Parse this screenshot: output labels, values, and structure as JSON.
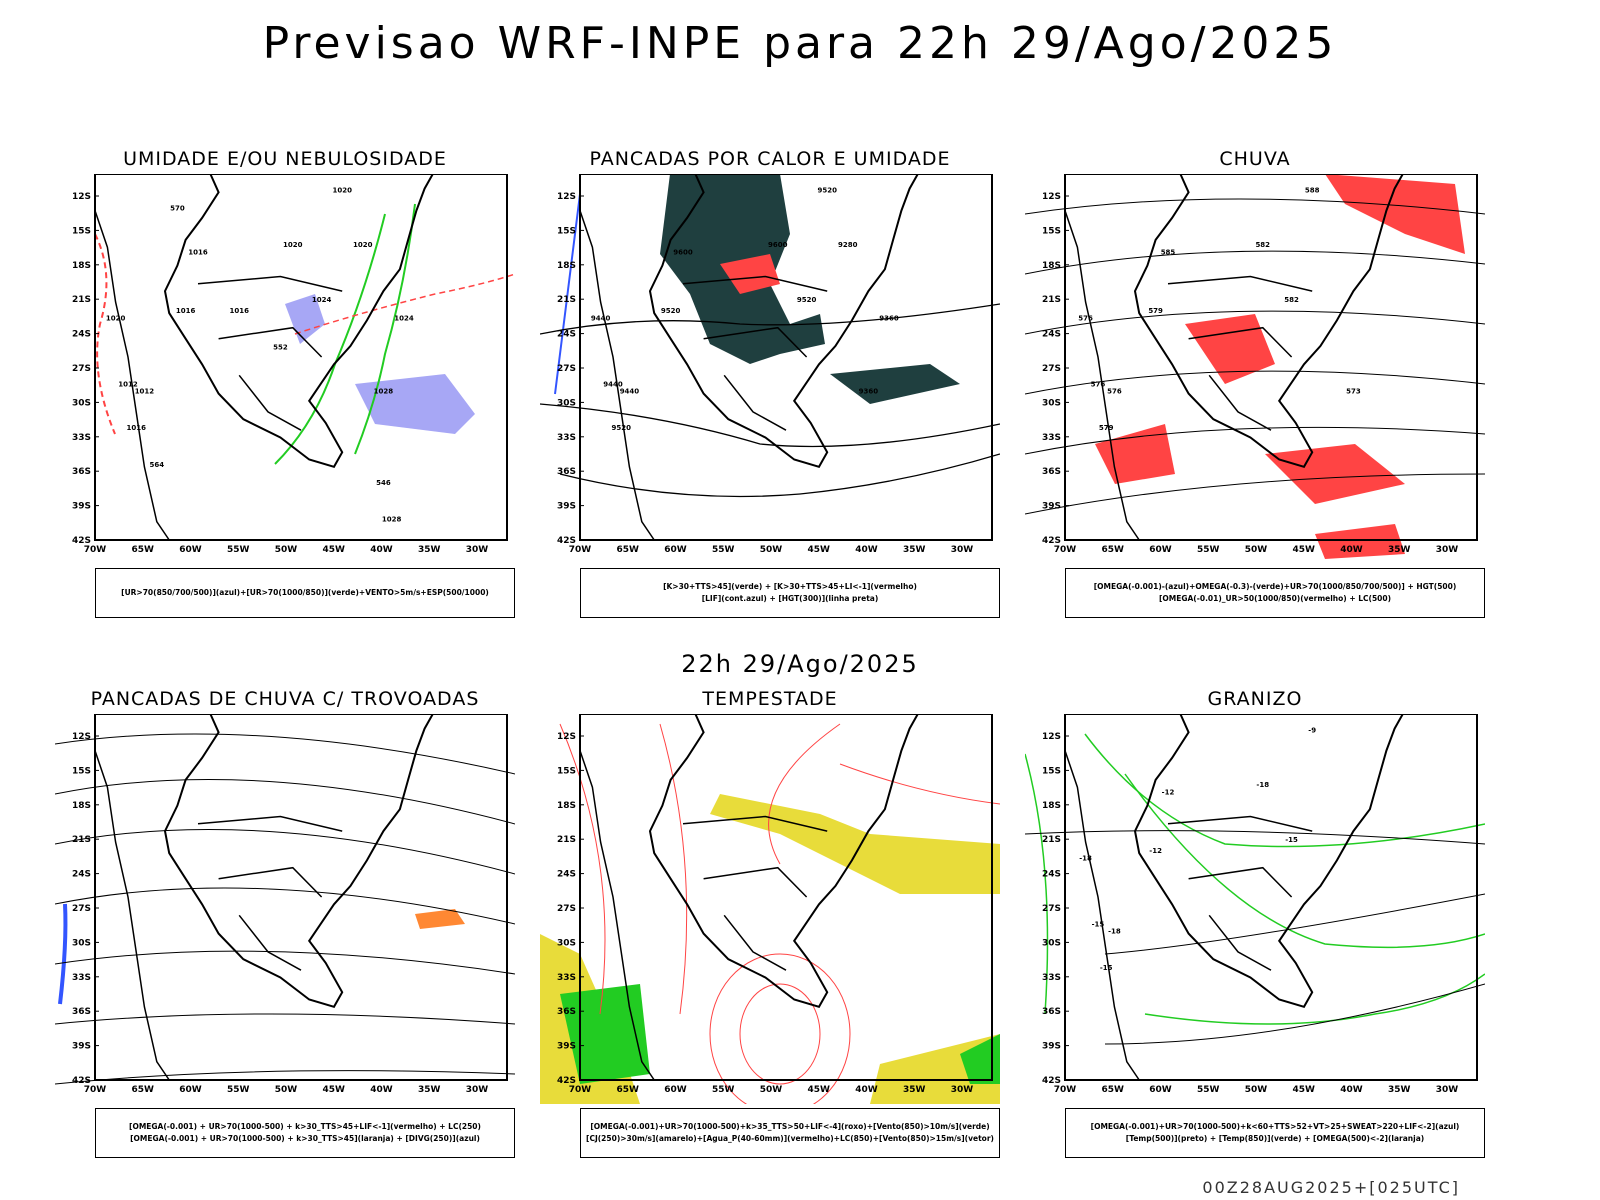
{
  "title": "Previsao WRF-INPE  para 22h 29/Ago/2025",
  "mid_title": "22h 29/Ago/2025",
  "footer": "00Z28AUG2025+[025UTC]",
  "axes": {
    "lat_labels": [
      "12S",
      "15S",
      "18S",
      "21S",
      "24S",
      "27S",
      "30S",
      "33S",
      "36S",
      "39S",
      "42S"
    ],
    "lon_labels": [
      "70W",
      "65W",
      "60W",
      "55W",
      "50W",
      "45W",
      "40W",
      "35W",
      "30W"
    ]
  },
  "colors": {
    "humid_blue": "#a7a7f5",
    "green": "#22cc22",
    "red": "#ff4444",
    "dark_teal": "#1f3f3f",
    "yellow": "#e8dc3a",
    "orange": "#ff8833",
    "blue": "#3355ff"
  },
  "panels": [
    {
      "title": "UMIDADE E/OU NEBULOSIDADE",
      "legend": [
        "[UR>70(850/700/500)](azul)+[UR>70(1000/850)](verde)+VENTO>5m/s+ESP(500/1000)"
      ],
      "contour_labels": [
        "1020",
        "1016",
        "1024",
        "1020",
        "1016",
        "1012",
        "1020",
        "1016",
        "1012",
        "1028",
        "1024",
        "1020",
        "1016",
        "1028",
        "570",
        "564",
        "552",
        "546"
      ]
    },
    {
      "title": "PANCADAS POR CALOR E UMIDADE",
      "legend": [
        "[K>30+TTS>45](verde) + [K>30+TTS>45+LI<-1](vermelho)",
        "[LIF](cont.azul) + [HGT(300)](linha preta)"
      ],
      "contour_labels": [
        "9520",
        "9600",
        "9520",
        "9600",
        "9520",
        "9440",
        "9440",
        "9520",
        "9440",
        "9360",
        "9360",
        "9280"
      ]
    },
    {
      "title": "CHUVA",
      "legend": [
        "[OMEGA(-0.001)-(azul)+OMEGA(-0.3)-(verde)+UR>70(1000/850/700/500)] + HGT(500)",
        "[OMEGA(-0.01)_UR>50(1000/850)(vermelho) + LC(500)"
      ],
      "contour_labels": [
        "588",
        "585",
        "582",
        "582",
        "579",
        "576",
        "576",
        "579",
        "576",
        "573"
      ]
    },
    {
      "title": "PANCADAS DE CHUVA C/ TROVOADAS",
      "legend": [
        "[OMEGA(-0.001) + UR>70(1000-500) + k>30_TTS>45+LIF<-1](vermelho) + LC(250)",
        "[OMEGA(-0.001) + UR>70(1000-500) + k>30_TTS>45](laranja) + [DIVG(250)](azul)"
      ],
      "contour_labels": []
    },
    {
      "title": "TEMPESTADE",
      "legend": [
        "[OMEGA(-0.001)+UR>70(1000-500)+k>35_TTS>50+LIF<-4](roxo)+[Vento(850)>10m/s](verde)",
        "[CJ(250)>30m/s](amarelo)+[Agua_P(40-60mm)](vermelho)+LC(850)+[Vento(850)>15m/s](vetor)"
      ],
      "contour_labels": []
    },
    {
      "title": "GRANIZO",
      "legend": [
        "[OMEGA(-0.001)+UR>70(1000-500)+k<60+TTS>52+VT>25+SWEAT>220+LIF<-2](azul)",
        "[Temp(500)](preto) + [Temp(850)](verde) + [OMEGA(500)<-2](laranja)"
      ],
      "contour_labels": [
        "-9",
        "-12",
        "-15",
        "-18",
        "-12",
        "-15",
        "-18",
        "-15",
        "-18"
      ]
    }
  ]
}
